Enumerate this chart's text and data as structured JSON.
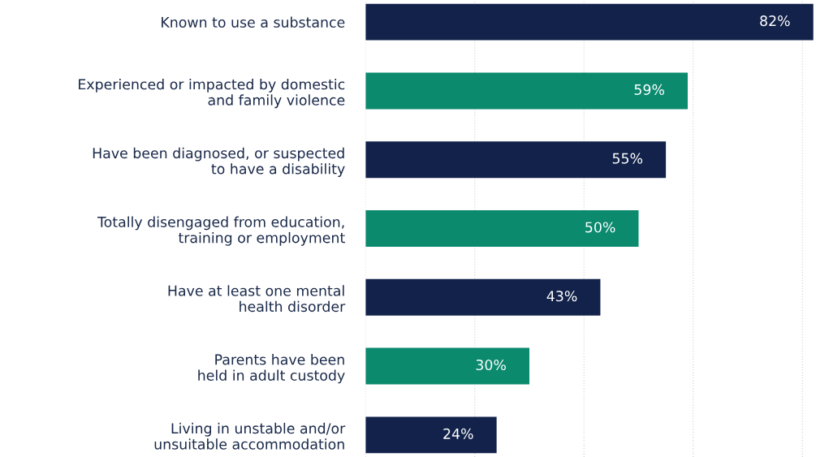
{
  "chart_data": {
    "type": "bar",
    "orientation": "horizontal",
    "categories": [
      "Known to use a substance",
      "Experienced or impacted by domestic\nand family violence",
      "Have been diagnosed, or suspected\nto have a disability",
      "Totally disengaged from education,\ntraining or employment",
      "Have at least one mental\nhealth disorder",
      "Parents have been\nheld in adult custody",
      "Living in unstable and/or\nunsuitable accommodation"
    ],
    "values": [
      82,
      59,
      55,
      50,
      43,
      30,
      24
    ],
    "value_labels": [
      "82%",
      "59%",
      "55%",
      "50%",
      "43%",
      "30%",
      "24%"
    ],
    "colors": [
      "#12224a",
      "#0b8a6e",
      "#12224a",
      "#0b8a6e",
      "#12224a",
      "#0b8a6e",
      "#12224a"
    ],
    "xticks": [
      {
        "value": 0,
        "label": null
      },
      {
        "value": 20,
        "label": null
      },
      {
        "value": 40,
        "label": null
      },
      {
        "value": 60,
        "label": null
      },
      {
        "value": 80,
        "label": null
      }
    ],
    "grid": "x",
    "tick_labels": "y"
  }
}
